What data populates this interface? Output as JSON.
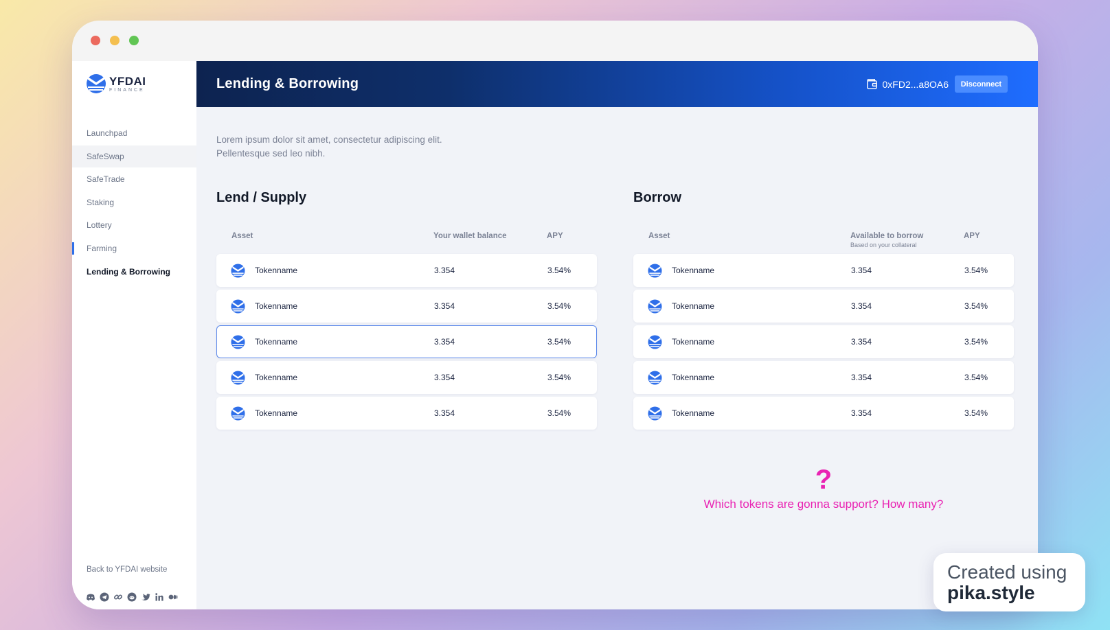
{
  "brand": {
    "name": "YFDAI",
    "sub": "FINANCE"
  },
  "nav": {
    "items": [
      {
        "label": "Launchpad"
      },
      {
        "label": "SafeSwap"
      },
      {
        "label": "SafeTrade"
      },
      {
        "label": "Staking"
      },
      {
        "label": "Lottery"
      },
      {
        "label": "Farming"
      },
      {
        "label": "Lending & Borrowing"
      }
    ],
    "back_label": "Back to YFDAI website",
    "socials": [
      "discord-icon",
      "telegram-icon",
      "link-icon",
      "reddit-icon",
      "twitter-icon",
      "linkedin-icon",
      "medium-icon"
    ]
  },
  "header": {
    "title": "Lending & Borrowing",
    "wallet_address": "0xFD2...a8OA6",
    "disconnect_label": "Disconnect"
  },
  "intro": {
    "line1": "Lorem ipsum dolor sit amet, consectetur adipiscing elit.",
    "line2": "Pellentesque sed leo nibh."
  },
  "lend": {
    "title": "Lend / Supply",
    "columns": {
      "asset": "Asset",
      "balance": "Your wallet balance",
      "apy": "APY"
    },
    "rows": [
      {
        "name": "Tokenname",
        "balance": "3.354",
        "apy": "3.54%"
      },
      {
        "name": "Tokenname",
        "balance": "3.354",
        "apy": "3.54%"
      },
      {
        "name": "Tokenname",
        "balance": "3.354",
        "apy": "3.54%"
      },
      {
        "name": "Tokenname",
        "balance": "3.354",
        "apy": "3.54%"
      },
      {
        "name": "Tokenname",
        "balance": "3.354",
        "apy": "3.54%"
      }
    ]
  },
  "borrow": {
    "title": "Borrow",
    "columns": {
      "asset": "Asset",
      "available": "Available to borrow",
      "available_sub": "Based on your collateral",
      "apy": "APY"
    },
    "rows": [
      {
        "name": "Tokenname",
        "available": "3.354",
        "apy": "3.54%"
      },
      {
        "name": "Tokenname",
        "available": "3.354",
        "apy": "3.54%"
      },
      {
        "name": "Tokenname",
        "available": "3.354",
        "apy": "3.54%"
      },
      {
        "name": "Tokenname",
        "available": "3.354",
        "apy": "3.54%"
      },
      {
        "name": "Tokenname",
        "available": "3.354",
        "apy": "3.54%"
      }
    ]
  },
  "note": {
    "mark": "?",
    "text": "Which tokens are gonna support? How many?",
    "color": "#e923b3"
  },
  "badge": {
    "line1": "Created using",
    "line2": "pika.style"
  },
  "colors": {
    "accent": "#2f6fe9",
    "header_start": "#0d2350",
    "header_end": "#1f6dff"
  }
}
